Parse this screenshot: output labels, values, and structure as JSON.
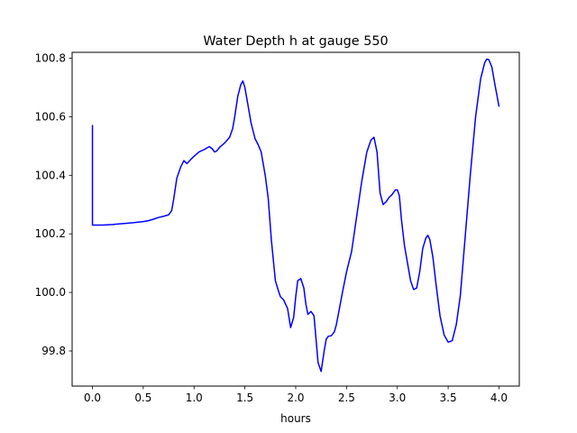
{
  "chart_data": {
    "type": "line",
    "title": "Water Depth h at gauge 550",
    "xlabel": "hours",
    "ylabel": "",
    "xlim": [
      -0.2,
      4.2
    ],
    "ylim": [
      99.68,
      100.82
    ],
    "xticks": [
      0.0,
      0.5,
      1.0,
      1.5,
      2.0,
      2.5,
      3.0,
      3.5,
      4.0
    ],
    "xtick_labels": [
      "0.0",
      "0.5",
      "1.0",
      "1.5",
      "2.0",
      "2.5",
      "3.0",
      "3.5",
      "4.0"
    ],
    "yticks": [
      99.8,
      100.0,
      100.2,
      100.4,
      100.6,
      100.8
    ],
    "ytick_labels": [
      "99.8",
      "100.0",
      "100.2",
      "100.4",
      "100.6",
      "100.8"
    ],
    "grid": false,
    "series": [
      {
        "color": "#0000ff",
        "x": [
          0.0,
          0.0,
          0.1,
          0.2,
          0.3,
          0.4,
          0.5,
          0.55,
          0.6,
          0.65,
          0.7,
          0.75,
          0.78,
          0.8,
          0.83,
          0.87,
          0.9,
          0.93,
          0.97,
          1.0,
          1.05,
          1.1,
          1.15,
          1.18,
          1.2,
          1.22,
          1.25,
          1.3,
          1.35,
          1.38,
          1.4,
          1.43,
          1.46,
          1.48,
          1.5,
          1.53,
          1.56,
          1.6,
          1.63,
          1.66,
          1.7,
          1.73,
          1.76,
          1.8,
          1.83,
          1.85,
          1.88,
          1.92,
          1.95,
          1.98,
          2.0,
          2.02,
          2.05,
          2.08,
          2.1,
          2.12,
          2.15,
          2.18,
          2.2,
          2.22,
          2.25,
          2.28,
          2.3,
          2.32,
          2.35,
          2.38,
          2.4,
          2.43,
          2.46,
          2.5,
          2.55,
          2.6,
          2.65,
          2.7,
          2.74,
          2.77,
          2.8,
          2.83,
          2.86,
          2.89,
          2.92,
          2.95,
          2.98,
          3.0,
          3.02,
          3.04,
          3.07,
          3.1,
          3.13,
          3.16,
          3.19,
          3.22,
          3.25,
          3.28,
          3.3,
          3.32,
          3.35,
          3.38,
          3.42,
          3.46,
          3.5,
          3.54,
          3.58,
          3.62,
          3.67,
          3.72,
          3.77,
          3.82,
          3.86,
          3.88,
          3.9,
          3.93,
          3.96,
          4.0
        ],
        "y": [
          100.57,
          100.23,
          100.23,
          100.232,
          100.235,
          100.238,
          100.242,
          100.245,
          100.25,
          100.256,
          100.26,
          100.265,
          100.28,
          100.32,
          100.39,
          100.43,
          100.45,
          100.44,
          100.455,
          100.465,
          100.48,
          100.488,
          100.498,
          100.49,
          100.48,
          100.482,
          100.495,
          100.51,
          100.53,
          100.56,
          100.6,
          100.67,
          100.71,
          100.722,
          100.7,
          100.64,
          100.58,
          100.525,
          100.505,
          100.48,
          100.4,
          100.32,
          100.18,
          100.04,
          100.005,
          99.985,
          99.975,
          99.945,
          99.88,
          99.915,
          99.985,
          100.04,
          100.047,
          100.015,
          99.96,
          99.925,
          99.935,
          99.92,
          99.84,
          99.76,
          99.73,
          99.8,
          99.84,
          99.85,
          99.852,
          99.865,
          99.89,
          99.945,
          100.0,
          100.07,
          100.14,
          100.26,
          100.38,
          100.48,
          100.52,
          100.53,
          100.48,
          100.34,
          100.3,
          100.31,
          100.325,
          100.335,
          100.35,
          100.35,
          100.33,
          100.25,
          100.16,
          100.1,
          100.04,
          100.01,
          100.015,
          100.07,
          100.15,
          100.185,
          100.195,
          100.18,
          100.12,
          100.03,
          99.92,
          99.855,
          99.83,
          99.835,
          99.89,
          99.99,
          100.2,
          100.41,
          100.6,
          100.73,
          100.785,
          100.797,
          100.795,
          100.77,
          100.71,
          100.636
        ]
      }
    ]
  }
}
